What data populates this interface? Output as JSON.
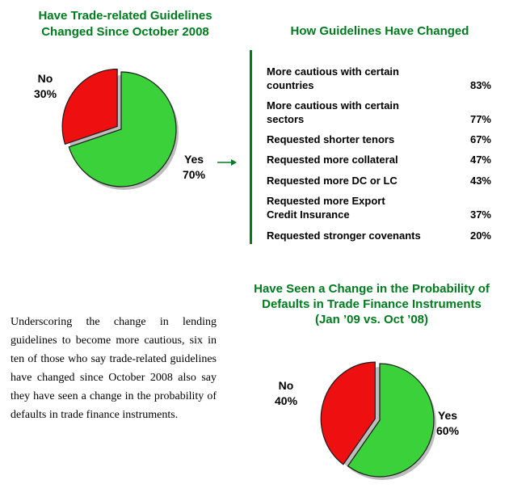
{
  "colors": {
    "title_green": "#007a1f",
    "pie_green": "#3ad13a",
    "pie_red": "#ee1010"
  },
  "icons": {
    "arrow": "right-arrow-icon"
  },
  "chart1": {
    "title_line1": "Have Trade-related Guidelines",
    "title_line2": "Changed Since October 2008",
    "label_no": "No",
    "pct_no": "30%",
    "label_yes": "Yes",
    "pct_yes": "70%"
  },
  "guidelines": {
    "title": "How Guidelines Have Changed",
    "items": [
      {
        "line1": "More cautious with certain",
        "line2": "countries",
        "pct": "83%"
      },
      {
        "line1": "More cautious with certain",
        "line2": "sectors",
        "pct": "77%"
      },
      {
        "line1": "Requested shorter tenors",
        "line2": "",
        "pct": "67%"
      },
      {
        "line1": "Requested more collateral",
        "line2": "",
        "pct": "47%"
      },
      {
        "line1": "Requested more DC or LC",
        "line2": "",
        "pct": "43%"
      },
      {
        "line1": "Requested more Export",
        "line2": "Credit Insurance",
        "pct": "37%"
      },
      {
        "line1": "Requested stronger covenants",
        "line2": "",
        "pct": "20%"
      }
    ]
  },
  "chart2": {
    "title_line1": "Have Seen a Change in the Probability of",
    "title_line2": "Defaults in Trade Finance Instruments",
    "title_line3": "(Jan ’09 vs. Oct ’08)",
    "label_no": "No",
    "pct_no": "40%",
    "label_yes": "Yes",
    "pct_yes": "60%"
  },
  "paragraph": "Underscoring the change in lending guidelines to become more cautious, six in ten of those who say trade-related guidelines have changed since October 2008 also say they have seen a change in the probability of defaults in trade finance instruments.",
  "chart_data": [
    {
      "type": "pie",
      "title": "Have Trade-related Guidelines Changed Since October 2008",
      "categories": [
        "No",
        "Yes"
      ],
      "values": [
        30,
        70
      ]
    },
    {
      "type": "bar",
      "title": "How Guidelines Have Changed",
      "categories": [
        "More cautious with certain countries",
        "More cautious with certain sectors",
        "Requested shorter tenors",
        "Requested more collateral",
        "Requested more DC or LC",
        "Requested more Export Credit Insurance",
        "Requested stronger covenants"
      ],
      "values": [
        83,
        77,
        67,
        47,
        43,
        37,
        20
      ]
    },
    {
      "type": "pie",
      "title": "Have Seen a Change in the Probability of Defaults in Trade Finance Instruments (Jan ’09 vs. Oct ’08)",
      "categories": [
        "No",
        "Yes"
      ],
      "values": [
        40,
        60
      ]
    }
  ]
}
